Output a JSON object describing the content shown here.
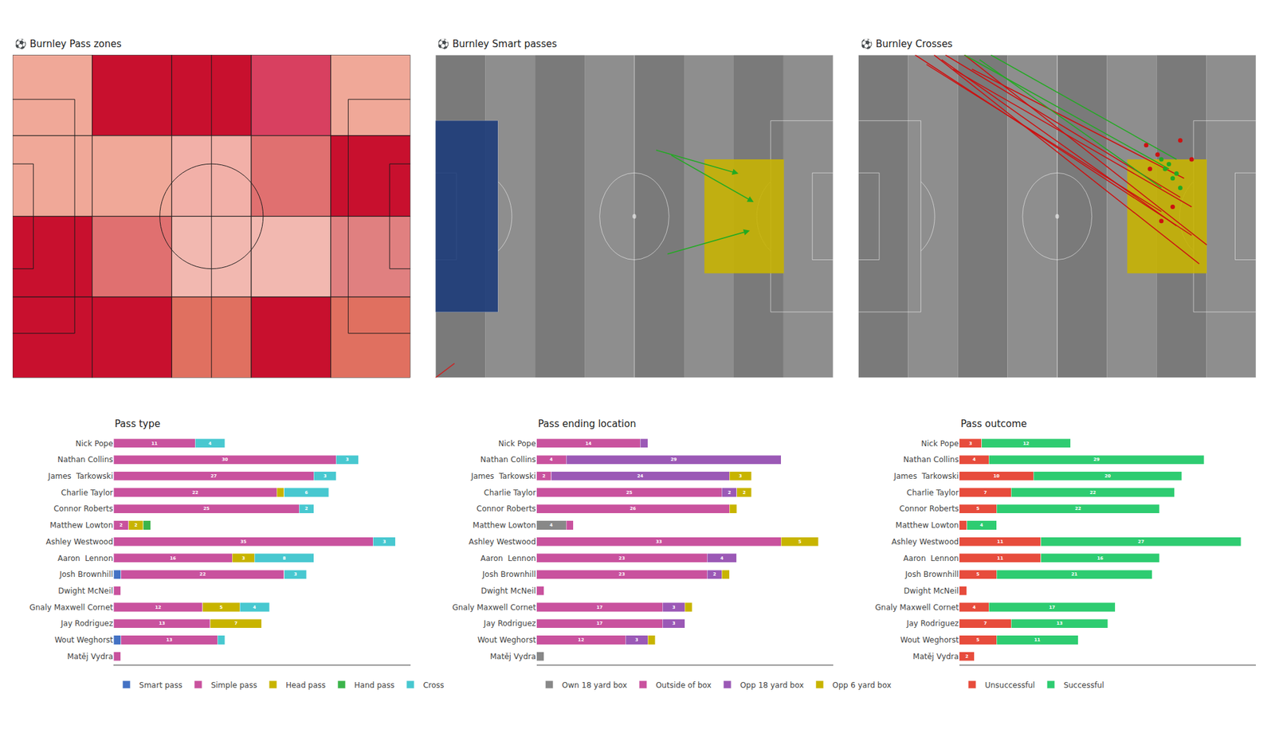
{
  "chart_data": [
    {
      "type": "heatmap",
      "title": "⚽ Burnley Pass zones",
      "xlim": [
        0,
        5
      ],
      "ylim": [
        0,
        4
      ],
      "tick_labels": false,
      "colors": [
        [
          "#f0a898",
          "#c8102e",
          "#c8102e",
          "#d84060",
          "#f0a898"
        ],
        [
          "#f0a898",
          "#f0a898",
          "#f2b0a8",
          "#e07070",
          "#c8102e"
        ],
        [
          "#c8102e",
          "#e07070",
          "#f2b8b0",
          "#f2b8b0",
          "#e08080"
        ],
        [
          "#c8102e",
          "#c8102e",
          "#e07060",
          "#c8102e",
          "#e07060"
        ]
      ]
    },
    {
      "type": "pitch",
      "title": "⚽ Burnley Smart passes",
      "xlim": [
        0,
        105
      ],
      "ylim": [
        0,
        68
      ],
      "tick_labels": false,
      "series": [
        {
          "type": "rect",
          "color": "#1a3a7a",
          "x": 0,
          "y": 13.85,
          "width": 16.5,
          "height": 40.3
        },
        {
          "type": "rect",
          "color": "#c8b400",
          "x": 71,
          "y": 22,
          "width": 21,
          "height": 24
        },
        {
          "type": "line",
          "color": "#cc2222",
          "x": [
            0,
            5
          ],
          "y": [
            0,
            3
          ]
        },
        {
          "type": "arrow",
          "color": "#22aa22",
          "x": [
            62,
            84,
            null,
            61,
            83,
            null,
            58,
            80
          ],
          "y": [
            47,
            37,
            null,
            26,
            31,
            null,
            48,
            43
          ]
        }
      ]
    },
    {
      "type": "pitch",
      "title": "⚽ Burnley Crosses",
      "xlim": [
        0,
        105
      ],
      "ylim": [
        0,
        68
      ],
      "tick_labels": false,
      "series": [
        {
          "type": "rect",
          "color": "#c8b400",
          "x": 71,
          "y": 22,
          "width": 21,
          "height": 24
        },
        {
          "type": "line",
          "color": "#cc1111",
          "x": [
            15,
            88,
            null,
            20,
            90,
            null,
            23,
            85,
            null,
            28,
            92,
            null,
            30,
            86,
            null,
            18,
            80,
            null,
            25,
            88,
            null,
            22,
            84
          ],
          "y": [
            68,
            30,
            null,
            68,
            24,
            null,
            68,
            38,
            null,
            68,
            28,
            null,
            65,
            42,
            null,
            66,
            35,
            null,
            65,
            36,
            null,
            67,
            32
          ]
        },
        {
          "type": "line",
          "color": "#22aa22",
          "x": [
            28,
            82,
            null,
            32,
            80,
            null,
            35,
            84
          ],
          "y": [
            68,
            44,
            null,
            67,
            40,
            null,
            68,
            46
          ]
        },
        {
          "type": "scatter",
          "color": "#22aa22",
          "x": [
            81,
            83,
            85,
            82,
            84,
            80
          ],
          "y": [
            44,
            42,
            40,
            45,
            43,
            46
          ]
        },
        {
          "type": "scatter",
          "color": "#cc1111",
          "x": [
            79,
            76,
            85,
            88,
            83,
            80,
            77
          ],
          "y": [
            47,
            49,
            50,
            46,
            36,
            33,
            44
          ]
        }
      ]
    },
    {
      "type": "bar",
      "title": "Pass type",
      "orientation": "horizontal",
      "stacked": true,
      "data_labels": true,
      "tick_labels": "y",
      "grid": false,
      "legend": "bottom",
      "xlim": [
        0,
        40
      ],
      "categories": [
        "Nick Pope",
        "Nathan Collins",
        "James  Tarkowski",
        "Charlie Taylor",
        "Connor Roberts",
        "Matthew Lowton",
        "Ashley Westwood",
        "Aaron  Lennon",
        "Josh Brownhill",
        "Dwight McNeil",
        "Gnaly Maxwell Cornet",
        "Jay Rodriguez",
        "Wout Weghorst",
        "Matěj Vydra"
      ],
      "series": [
        {
          "name": "Smart pass",
          "color": "#4472c4",
          "values": [
            0,
            0,
            0,
            0,
            0,
            0,
            0,
            0,
            1,
            0,
            0,
            0,
            1,
            0
          ],
          "value_labels": [
            null,
            null,
            null,
            null,
            null,
            null,
            null,
            null,
            null,
            null,
            null,
            null,
            null,
            null
          ]
        },
        {
          "name": "Simple pass",
          "color": "#c9529e",
          "values": [
            11,
            30,
            27,
            22,
            25,
            2,
            35,
            16,
            22,
            1,
            12,
            13,
            13,
            1
          ],
          "value_labels": [
            "11",
            "30",
            "27",
            "22",
            "25",
            "2",
            "35",
            "16",
            "22",
            null,
            "12",
            "13",
            "13",
            null
          ]
        },
        {
          "name": "Head pass",
          "color": "#c8b400",
          "values": [
            0,
            0,
            0,
            1,
            0,
            2,
            0,
            3,
            0,
            0,
            5,
            7,
            0,
            0
          ],
          "value_labels": [
            null,
            null,
            null,
            null,
            null,
            "2",
            null,
            "3",
            null,
            null,
            "5",
            "7",
            null,
            null
          ]
        },
        {
          "name": "Hand pass",
          "color": "#3cb44b",
          "values": [
            0,
            0,
            0,
            0,
            0,
            1,
            0,
            0,
            0,
            0,
            0,
            0,
            0,
            0
          ],
          "value_labels": [
            null,
            null,
            null,
            null,
            null,
            null,
            null,
            null,
            null,
            null,
            null,
            null,
            null,
            null
          ]
        },
        {
          "name": "Cross",
          "color": "#48c8d0",
          "values": [
            4,
            3,
            3,
            6,
            2,
            0,
            3,
            8,
            3,
            0,
            4,
            0,
            1,
            0
          ],
          "value_labels": [
            "4",
            "3",
            "3",
            "6",
            "2",
            null,
            "3",
            "8",
            "3",
            null,
            "4",
            null,
            null,
            null
          ]
        }
      ]
    },
    {
      "type": "bar",
      "title": "Pass ending location",
      "orientation": "horizontal",
      "stacked": true,
      "data_labels": true,
      "tick_labels": "y",
      "grid": false,
      "legend": "bottom",
      "xlim": [
        0,
        40
      ],
      "categories": [
        "Nick Pope",
        "Nathan Collins",
        "James  Tarkowski",
        "Charlie Taylor",
        "Connor Roberts",
        "Matthew Lowton",
        "Ashley Westwood",
        "Aaron  Lennon",
        "Josh Brownhill",
        "Dwight McNeil",
        "Gnaly Maxwell Cornet",
        "Jay Rodriguez",
        "Wout Weghorst",
        "Matěj Vydra"
      ],
      "series": [
        {
          "name": "Own 18 yard box",
          "color": "#888888",
          "values": [
            0,
            0,
            0,
            0,
            0,
            4,
            0,
            0,
            0,
            0,
            0,
            0,
            0,
            1
          ],
          "value_labels": [
            null,
            null,
            null,
            null,
            null,
            "4",
            null,
            null,
            null,
            null,
            null,
            null,
            null,
            null
          ]
        },
        {
          "name": "Outside of box",
          "color": "#c9529e",
          "values": [
            14,
            4,
            2,
            25,
            26,
            1,
            33,
            23,
            23,
            1,
            17,
            17,
            12,
            0
          ],
          "value_labels": [
            "14",
            "4",
            "2",
            "25",
            "26",
            null,
            "33",
            "23",
            "23",
            null,
            "17",
            "17",
            "12",
            null
          ]
        },
        {
          "name": "Opp 18 yard box",
          "color": "#9b59b6",
          "values": [
            1,
            29,
            24,
            2,
            0,
            0,
            0,
            4,
            2,
            0,
            3,
            3,
            3,
            0
          ],
          "value_labels": [
            null,
            "29",
            "24",
            "2",
            null,
            null,
            null,
            "4",
            "2",
            null,
            "3",
            "3",
            "3",
            null
          ]
        },
        {
          "name": "Opp 6 yard box",
          "color": "#c8b400",
          "values": [
            0,
            0,
            3,
            2,
            1,
            0,
            5,
            0,
            1,
            0,
            1,
            0,
            1,
            0
          ],
          "value_labels": [
            null,
            null,
            "3",
            "2",
            null,
            null,
            "5",
            null,
            null,
            null,
            null,
            null,
            null,
            null
          ]
        }
      ]
    },
    {
      "type": "bar",
      "title": "Pass outcome",
      "orientation": "horizontal",
      "stacked": true,
      "data_labels": true,
      "tick_labels": "y",
      "grid": false,
      "legend": "bottom",
      "xlim": [
        0,
        40
      ],
      "categories": [
        "Nick Pope",
        "Nathan Collins",
        "James  Tarkowski",
        "Charlie Taylor",
        "Connor Roberts",
        "Matthew Lowton",
        "Ashley Westwood",
        "Aaron  Lennon",
        "Josh Brownhill",
        "Dwight McNeil",
        "Gnaly Maxwell Cornet",
        "Jay Rodriguez",
        "Wout Weghorst",
        "Matěj Vydra"
      ],
      "series": [
        {
          "name": "Unsuccessful",
          "color": "#e74c3c",
          "values": [
            3,
            4,
            10,
            7,
            5,
            1,
            11,
            11,
            5,
            1,
            4,
            7,
            5,
            2
          ],
          "value_labels": [
            "3",
            "4",
            "10",
            "7",
            "5",
            null,
            "11",
            "11",
            "5",
            null,
            "4",
            "7",
            "5",
            "2"
          ]
        },
        {
          "name": "Successful",
          "color": "#2ecc71",
          "values": [
            12,
            29,
            20,
            22,
            22,
            4,
            27,
            16,
            21,
            0,
            17,
            13,
            11,
            0
          ],
          "value_labels": [
            "12",
            "29",
            "20",
            "22",
            "22",
            "4",
            "27",
            "16",
            "21",
            null,
            "17",
            "13",
            "11",
            null
          ]
        }
      ]
    }
  ]
}
